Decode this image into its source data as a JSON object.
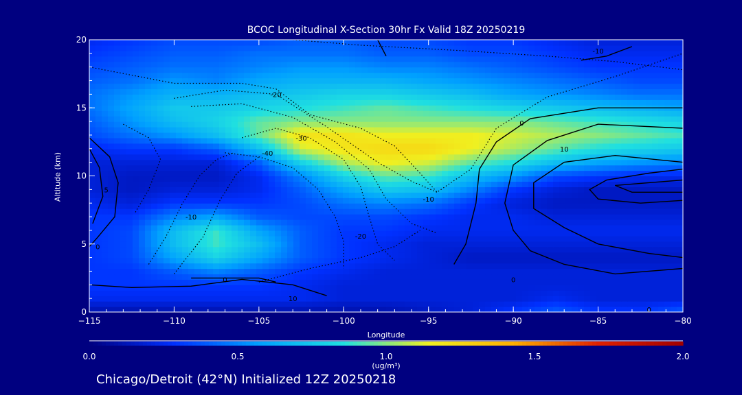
{
  "title": "BCOC Longitudinal X-Section 30hr  Fx Valid 18Z 20250219",
  "footer": "Chicago/Detroit (42°N) Initialized 12Z 20250218",
  "chart_data": {
    "type": "heatmap",
    "title": "BCOC Longitudinal X-Section 30hr  Fx Valid 18Z 20250219",
    "xlabel": "Longitude",
    "ylabel": "Altitude (km)",
    "xlim": [
      -115,
      -80
    ],
    "ylim": [
      0,
      20
    ],
    "xticks": [
      -115,
      -110,
      -105,
      -100,
      -95,
      -90,
      -85,
      -80
    ],
    "xtick_labels": [
      "−115",
      "−110",
      "−105",
      "−100",
      "−95",
      "−90",
      "−85",
      "−80"
    ],
    "yticks": [
      0,
      5,
      10,
      15,
      20
    ],
    "ytick_labels": [
      "0",
      "5",
      "10",
      "15",
      "20"
    ],
    "colorbar": {
      "min": 0.0,
      "max": 2.0,
      "ticks": [
        0.0,
        0.5,
        1.0,
        1.5,
        2.0
      ],
      "tick_labels": [
        "0.0",
        "0.5",
        "1.0",
        "1.5",
        "2.0"
      ],
      "unit": "(ug/m³)",
      "colors": [
        "#000080",
        "#0030ff",
        "#00a0ff",
        "#20e0e0",
        "#f0f020",
        "#ffb000",
        "#e02000",
        "#a00000"
      ]
    },
    "contour_labels": [
      "-20",
      "-30",
      "-40",
      "-10",
      "-20",
      "-10",
      "0",
      "10",
      "0",
      "5",
      "0",
      "0",
      "10",
      "-10",
      "0"
    ],
    "field": {
      "lons": [
        -115,
        -112.5,
        -110,
        -107.5,
        -105,
        -102.5,
        -100,
        -97.5,
        -95,
        -92.5,
        -90,
        -87.5,
        -85,
        -82.5,
        -80
      ],
      "alts": [
        0,
        1,
        2,
        3,
        4,
        5,
        6,
        7,
        8,
        9,
        10,
        11,
        12,
        13,
        14,
        15,
        16,
        17,
        18,
        19,
        20
      ],
      "values": [
        [
          0.1,
          0.1,
          0.1,
          0.1,
          0.1,
          0.1,
          0.1,
          0.1,
          0.15,
          0.2,
          0.3,
          0.4,
          0.3,
          0.3,
          0.4
        ],
        [
          0.25,
          0.25,
          0.25,
          0.25,
          0.25,
          0.25,
          0.2,
          0.2,
          0.2,
          0.2,
          0.2,
          0.25,
          0.2,
          0.2,
          0.2
        ],
        [
          0.3,
          0.3,
          0.3,
          0.3,
          0.3,
          0.25,
          0.2,
          0.2,
          0.2,
          0.2,
          0.2,
          0.2,
          0.2,
          0.2,
          0.2
        ],
        [
          0.3,
          0.3,
          0.4,
          0.5,
          0.4,
          0.3,
          0.25,
          0.2,
          0.2,
          0.2,
          0.2,
          0.2,
          0.2,
          0.2,
          0.2
        ],
        [
          0.3,
          0.35,
          0.6,
          0.8,
          0.6,
          0.4,
          0.3,
          0.25,
          0.2,
          0.15,
          0.15,
          0.15,
          0.15,
          0.15,
          0.15
        ],
        [
          0.3,
          0.35,
          0.7,
          0.9,
          0.7,
          0.4,
          0.3,
          0.25,
          0.2,
          0.2,
          0.2,
          0.2,
          0.2,
          0.2,
          0.2
        ],
        [
          0.3,
          0.35,
          0.7,
          0.9,
          0.6,
          0.4,
          0.3,
          0.3,
          0.25,
          0.25,
          0.25,
          0.25,
          0.25,
          0.25,
          0.25
        ],
        [
          0.3,
          0.3,
          0.5,
          0.6,
          0.4,
          0.35,
          0.35,
          0.35,
          0.3,
          0.25,
          0.25,
          0.2,
          0.2,
          0.2,
          0.2
        ],
        [
          0.25,
          0.2,
          0.3,
          0.3,
          0.3,
          0.35,
          0.45,
          0.5,
          0.45,
          0.3,
          0.2,
          0.15,
          0.15,
          0.15,
          0.15
        ],
        [
          0.2,
          0.15,
          0.2,
          0.2,
          0.25,
          0.4,
          0.6,
          0.75,
          0.7,
          0.5,
          0.3,
          0.2,
          0.15,
          0.15,
          0.15
        ],
        [
          0.2,
          0.15,
          0.15,
          0.15,
          0.25,
          0.5,
          0.8,
          0.95,
          0.9,
          0.7,
          0.55,
          0.35,
          0.3,
          0.25,
          0.25
        ],
        [
          0.2,
          0.2,
          0.2,
          0.2,
          0.4,
          0.8,
          1.05,
          1.15,
          1.1,
          0.95,
          0.85,
          0.7,
          0.6,
          0.55,
          0.5
        ],
        [
          0.25,
          0.3,
          0.3,
          0.4,
          0.7,
          1.1,
          1.2,
          1.25,
          1.25,
          1.15,
          1.05,
          0.95,
          0.85,
          0.8,
          0.75
        ],
        [
          0.35,
          0.45,
          0.55,
          0.7,
          0.95,
          1.2,
          1.2,
          1.15,
          1.15,
          1.15,
          1.1,
          1.05,
          1.0,
          0.95,
          0.9
        ],
        [
          0.4,
          0.55,
          0.7,
          0.8,
          0.95,
          1.0,
          1.0,
          1.0,
          1.0,
          1.0,
          1.0,
          0.95,
          0.9,
          0.85,
          0.8
        ],
        [
          0.45,
          0.6,
          0.75,
          0.75,
          0.8,
          0.85,
          0.9,
          0.95,
          0.9,
          0.85,
          0.8,
          0.75,
          0.7,
          0.65,
          0.6
        ],
        [
          0.45,
          0.55,
          0.65,
          0.65,
          0.7,
          0.75,
          0.8,
          0.8,
          0.75,
          0.7,
          0.6,
          0.55,
          0.5,
          0.45,
          0.45
        ],
        [
          0.4,
          0.45,
          0.55,
          0.5,
          0.6,
          0.65,
          0.65,
          0.65,
          0.6,
          0.55,
          0.5,
          0.45,
          0.4,
          0.35,
          0.35
        ],
        [
          0.35,
          0.4,
          0.45,
          0.45,
          0.5,
          0.55,
          0.55,
          0.5,
          0.5,
          0.45,
          0.4,
          0.35,
          0.3,
          0.3,
          0.3
        ],
        [
          0.3,
          0.35,
          0.4,
          0.4,
          0.45,
          0.45,
          0.45,
          0.4,
          0.4,
          0.35,
          0.35,
          0.3,
          0.25,
          0.25,
          0.25
        ],
        [
          0.25,
          0.3,
          0.35,
          0.35,
          0.35,
          0.4,
          0.4,
          0.35,
          0.35,
          0.3,
          0.3,
          0.25,
          0.2,
          0.2,
          0.2
        ]
      ]
    }
  }
}
